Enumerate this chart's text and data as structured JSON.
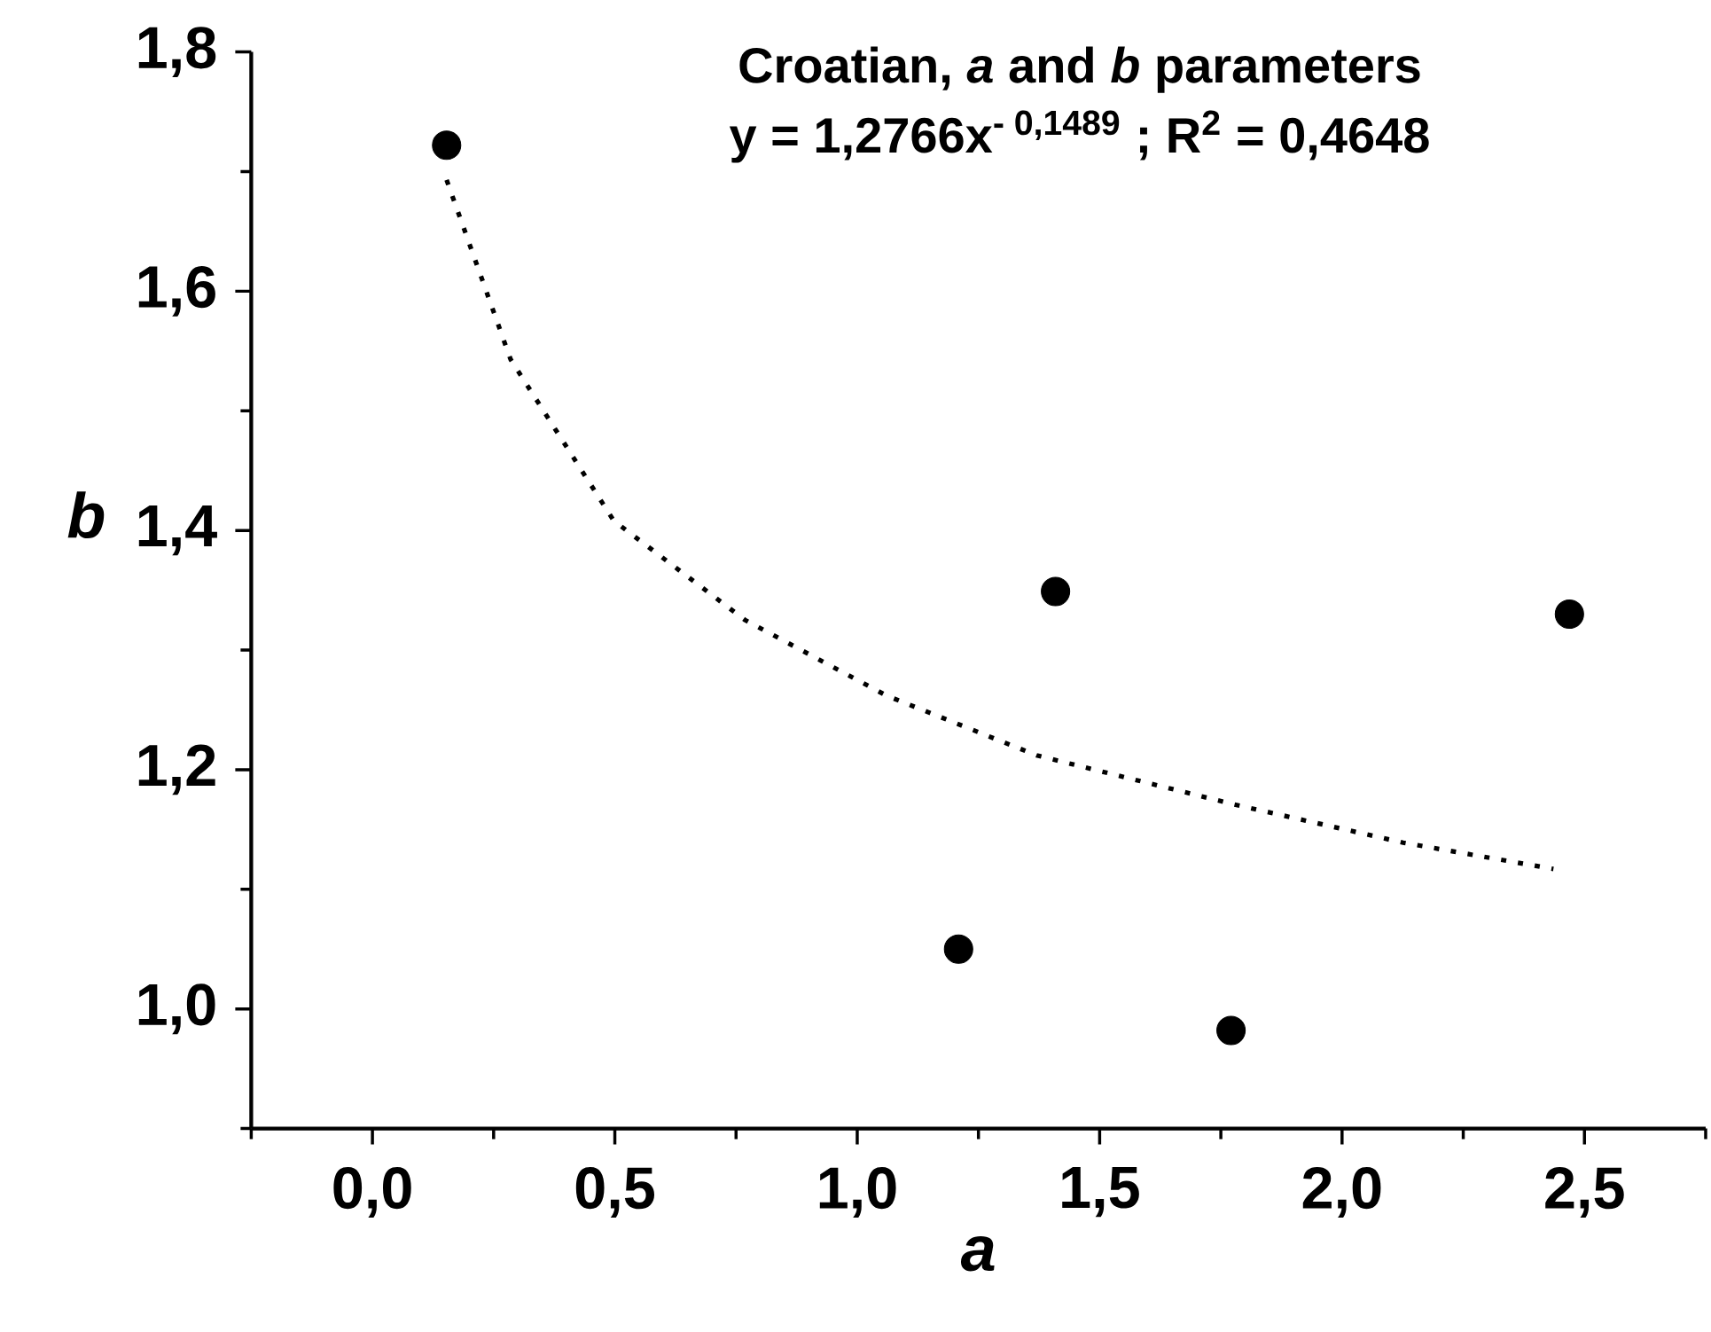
{
  "chart_data": {
    "type": "scatter",
    "title": "Croatian, *a* and *b* parameters",
    "subtitle": "y = 1,2766x$^{- 0,1489}$ ; R$^{2}$ = 0,4648",
    "xlabel": "a",
    "ylabel": "b",
    "xlim": [
      -0.25,
      2.75
    ],
    "ylim": [
      0.9,
      1.8
    ],
    "xticks": [
      {
        "value": -0.25,
        "label": null
      },
      {
        "value": 0,
        "label": "0,0"
      },
      {
        "value": 0.25,
        "label": null
      },
      {
        "value": 0.5,
        "label": "0,5"
      },
      {
        "value": 0.75,
        "label": null
      },
      {
        "value": 1,
        "label": "1,0"
      },
      {
        "value": 1.25,
        "label": null
      },
      {
        "value": 1.5,
        "label": "1,5"
      },
      {
        "value": 1.75,
        "label": null
      },
      {
        "value": 2,
        "label": "2,0"
      },
      {
        "value": 2.25,
        "label": null
      },
      {
        "value": 2.5,
        "label": "2,5"
      },
      {
        "value": 2.75,
        "label": null
      }
    ],
    "yticks": [
      {
        "value": 0.9,
        "label": null
      },
      {
        "value": 1.0,
        "label": "1,0"
      },
      {
        "value": 1.1,
        "label": null
      },
      {
        "value": 1.2,
        "label": "1,2"
      },
      {
        "value": 1.3,
        "label": null
      },
      {
        "value": 1.4,
        "label": "1,4"
      },
      {
        "value": 1.5,
        "label": null
      },
      {
        "value": 1.6,
        "label": "1,6"
      },
      {
        "value": 1.7,
        "label": null
      },
      {
        "value": 1.8,
        "label": "1,8"
      }
    ],
    "grid": false,
    "marker": "circle",
    "series": [
      {
        "color": "#000000",
        "x": [
          0.153,
          1.409,
          2.469,
          1.209,
          1.771
        ],
        "values": [
          1.722,
          1.349,
          1.33,
          1.05,
          0.982
        ]
      },
      {
        "type": "line",
        "line_style": "dotted",
        "marker": "none",
        "color": "#000000",
        "x": [
          0.153,
          0.285,
          0.498,
          0.769,
          1.06,
          1.37,
          1.777,
          2.126,
          2.436
        ],
        "values": [
          1.693,
          1.543,
          1.408,
          1.325,
          1.262,
          1.212,
          1.171,
          1.139,
          1.117
        ]
      }
    ]
  }
}
